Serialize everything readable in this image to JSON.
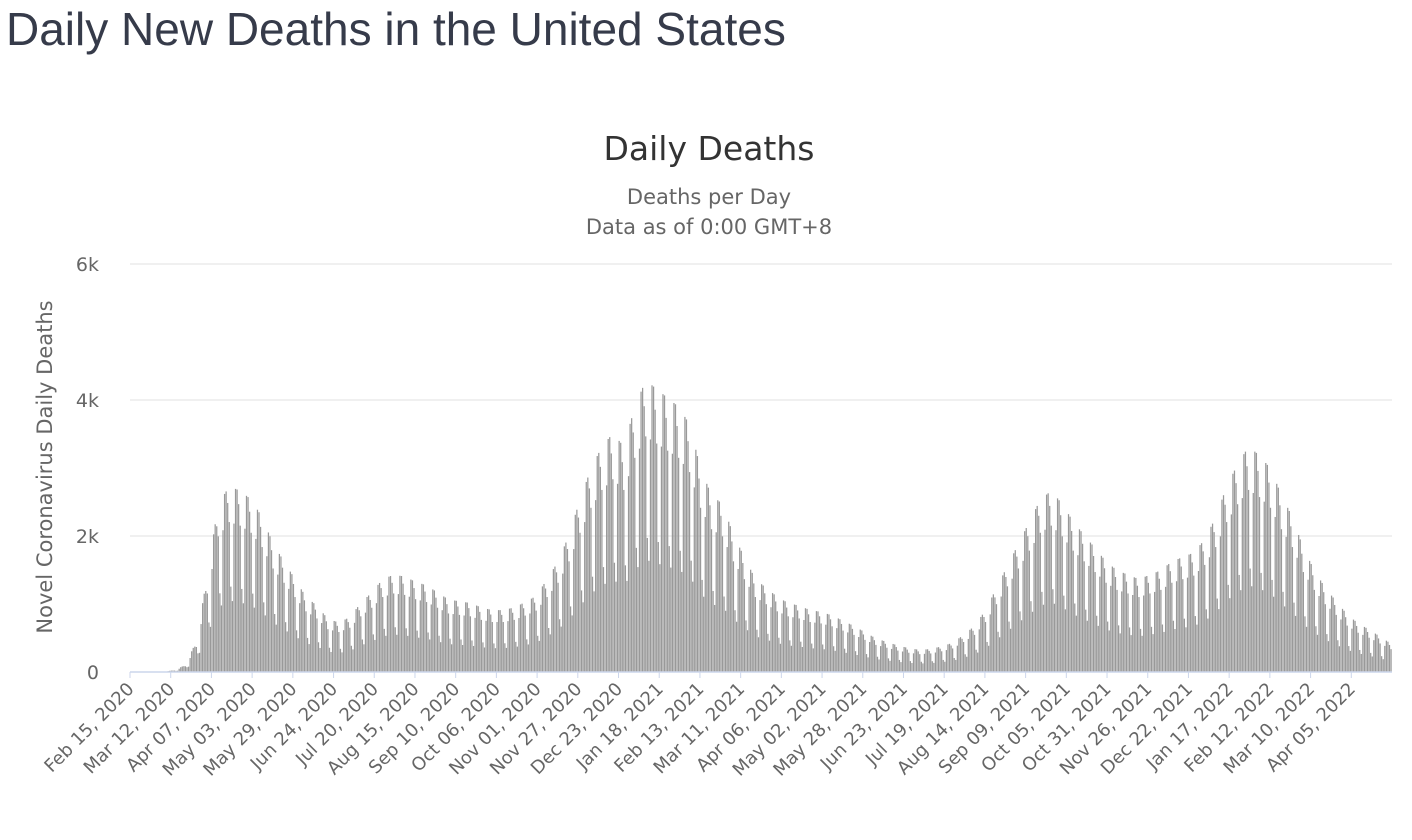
{
  "page": {
    "title": "Daily New Deaths in the United States"
  },
  "chart_data": {
    "type": "bar",
    "title": "Daily Deaths",
    "subtitle": "Deaths per Day",
    "subtitle2": "Data as of 0:00 GMT+8",
    "ylabel": "Novel Coronavirus Daily Deaths",
    "xlabel": "",
    "ylim": [
      0,
      6000
    ],
    "yticks": [
      0,
      2000,
      4000,
      6000
    ],
    "ytick_labels": [
      "0",
      "2k",
      "4k",
      "6k"
    ],
    "x_start": "Feb 15, 2020",
    "x_end": "Apr 30, 2022",
    "x_tick_labels": [
      "Feb 15, 2020",
      "Mar 12, 2020",
      "Apr 07, 2020",
      "May 03, 2020",
      "May 29, 2020",
      "Jun 24, 2020",
      "Jul 20, 2020",
      "Aug 15, 2020",
      "Sep 10, 2020",
      "Oct 06, 2020",
      "Nov 01, 2020",
      "Nov 27, 2020",
      "Dec 23, 2020",
      "Jan 18, 2021",
      "Feb 13, 2021",
      "Mar 11, 2021",
      "Apr 06, 2021",
      "May 02, 2021",
      "May 28, 2021",
      "Jun 23, 2021",
      "Jul 19, 2021",
      "Aug 14, 2021",
      "Sep 09, 2021",
      "Oct 05, 2021",
      "Oct 31, 2021",
      "Nov 26, 2021",
      "Dec 22, 2021",
      "Jan 17, 2022",
      "Feb 12, 2022",
      "Mar 10, 2022",
      "Apr 05, 2022"
    ],
    "series": [
      {
        "name": "",
        "color": "#999999",
        "weekly_average": [
          {
            "week_of": "Feb 15, 2020",
            "value": 0
          },
          {
            "week_of": "Feb 22, 2020",
            "value": 0
          },
          {
            "week_of": "Feb 29, 2020",
            "value": 2
          },
          {
            "week_of": "Mar 07, 2020",
            "value": 5
          },
          {
            "week_of": "Mar 14, 2020",
            "value": 20
          },
          {
            "week_of": "Mar 21, 2020",
            "value": 80
          },
          {
            "week_of": "Mar 28, 2020",
            "value": 350
          },
          {
            "week_of": "Apr 04, 2020",
            "value": 1100
          },
          {
            "week_of": "Apr 11, 2020",
            "value": 1900
          },
          {
            "week_of": "Apr 18, 2020",
            "value": 2100
          },
          {
            "week_of": "Apr 25, 2020",
            "value": 2050
          },
          {
            "week_of": "May 02, 2020",
            "value": 1950
          },
          {
            "week_of": "May 09, 2020",
            "value": 1750
          },
          {
            "week_of": "May 16, 2020",
            "value": 1450
          },
          {
            "week_of": "May 23, 2020",
            "value": 1250
          },
          {
            "week_of": "May 30, 2020",
            "value": 1050
          },
          {
            "week_of": "Jun 06, 2020",
            "value": 850
          },
          {
            "week_of": "Jun 13, 2020",
            "value": 750
          },
          {
            "week_of": "Jun 20, 2020",
            "value": 600
          },
          {
            "week_of": "Jun 27, 2020",
            "value": 560
          },
          {
            "week_of": "Jul 04, 2020",
            "value": 620
          },
          {
            "week_of": "Jul 11, 2020",
            "value": 780
          },
          {
            "week_of": "Jul 18, 2020",
            "value": 900
          },
          {
            "week_of": "Jul 25, 2020",
            "value": 1050
          },
          {
            "week_of": "Aug 01, 2020",
            "value": 1100
          },
          {
            "week_of": "Aug 08, 2020",
            "value": 1080
          },
          {
            "week_of": "Aug 15, 2020",
            "value": 1020
          },
          {
            "week_of": "Aug 22, 2020",
            "value": 980
          },
          {
            "week_of": "Aug 29, 2020",
            "value": 900
          },
          {
            "week_of": "Sep 05, 2020",
            "value": 820
          },
          {
            "week_of": "Sep 12, 2020",
            "value": 800
          },
          {
            "week_of": "Sep 19, 2020",
            "value": 780
          },
          {
            "week_of": "Sep 26, 2020",
            "value": 730
          },
          {
            "week_of": "Oct 03, 2020",
            "value": 700
          },
          {
            "week_of": "Oct 10, 2020",
            "value": 700
          },
          {
            "week_of": "Oct 17, 2020",
            "value": 730
          },
          {
            "week_of": "Oct 24, 2020",
            "value": 790
          },
          {
            "week_of": "Oct 31, 2020",
            "value": 860
          },
          {
            "week_of": "Nov 07, 2020",
            "value": 1050
          },
          {
            "week_of": "Nov 14, 2020",
            "value": 1250
          },
          {
            "week_of": "Nov 21, 2020",
            "value": 1550
          },
          {
            "week_of": "Nov 28, 2020",
            "value": 1950
          },
          {
            "week_of": "Dec 05, 2020",
            "value": 2300
          },
          {
            "week_of": "Dec 12, 2020",
            "value": 2550
          },
          {
            "week_of": "Dec 19, 2020",
            "value": 2700
          },
          {
            "week_of": "Dec 26, 2020",
            "value": 2550
          },
          {
            "week_of": "Jan 02, 2021",
            "value": 3000
          },
          {
            "week_of": "Jan 09, 2021",
            "value": 3300
          },
          {
            "week_of": "Jan 16, 2021",
            "value": 3200
          },
          {
            "week_of": "Jan 23, 2021",
            "value": 3100
          },
          {
            "week_of": "Jan 30, 2021",
            "value": 3000
          },
          {
            "week_of": "Feb 06, 2021",
            "value": 2800
          },
          {
            "week_of": "Feb 13, 2021",
            "value": 2300
          },
          {
            "week_of": "Feb 20, 2021",
            "value": 2000
          },
          {
            "week_of": "Feb 27, 2021",
            "value": 1900
          },
          {
            "week_of": "Mar 06, 2021",
            "value": 1550
          },
          {
            "week_of": "Mar 13, 2021",
            "value": 1300
          },
          {
            "week_of": "Mar 20, 2021",
            "value": 1050
          },
          {
            "week_of": "Mar 27, 2021",
            "value": 950
          },
          {
            "week_of": "Apr 03, 2021",
            "value": 850
          },
          {
            "week_of": "Apr 10, 2021",
            "value": 780
          },
          {
            "week_of": "Apr 17, 2021",
            "value": 750
          },
          {
            "week_of": "Apr 24, 2021",
            "value": 700
          },
          {
            "week_of": "May 01, 2021",
            "value": 680
          },
          {
            "week_of": "May 08, 2021",
            "value": 640
          },
          {
            "week_of": "May 15, 2021",
            "value": 580
          },
          {
            "week_of": "May 22, 2021",
            "value": 520
          },
          {
            "week_of": "May 29, 2021",
            "value": 450
          },
          {
            "week_of": "Jun 05, 2021",
            "value": 380
          },
          {
            "week_of": "Jun 12, 2021",
            "value": 340
          },
          {
            "week_of": "Jun 19, 2021",
            "value": 300
          },
          {
            "week_of": "Jun 26, 2021",
            "value": 270
          },
          {
            "week_of": "Jul 03, 2021",
            "value": 250
          },
          {
            "week_of": "Jul 10, 2021",
            "value": 260
          },
          {
            "week_of": "Jul 17, 2021",
            "value": 290
          },
          {
            "week_of": "Jul 24, 2021",
            "value": 330
          },
          {
            "week_of": "Jul 31, 2021",
            "value": 420
          },
          {
            "week_of": "Aug 07, 2021",
            "value": 520
          },
          {
            "week_of": "Aug 14, 2021",
            "value": 700
          },
          {
            "week_of": "Aug 21, 2021",
            "value": 950
          },
          {
            "week_of": "Aug 28, 2021",
            "value": 1200
          },
          {
            "week_of": "Sep 04, 2021",
            "value": 1450
          },
          {
            "week_of": "Sep 11, 2021",
            "value": 1700
          },
          {
            "week_of": "Sep 18, 2021",
            "value": 1950
          },
          {
            "week_of": "Sep 25, 2021",
            "value": 2050
          },
          {
            "week_of": "Oct 02, 2021",
            "value": 1900
          },
          {
            "week_of": "Oct 09, 2021",
            "value": 1700
          },
          {
            "week_of": "Oct 16, 2021",
            "value": 1550
          },
          {
            "week_of": "Oct 23, 2021",
            "value": 1400
          },
          {
            "week_of": "Oct 30, 2021",
            "value": 1250
          },
          {
            "week_of": "Nov 06, 2021",
            "value": 1150
          },
          {
            "week_of": "Nov 13, 2021",
            "value": 1100
          },
          {
            "week_of": "Nov 20, 2021",
            "value": 1050
          },
          {
            "week_of": "Nov 27, 2021",
            "value": 1100
          },
          {
            "week_of": "Dec 04, 2021",
            "value": 1150
          },
          {
            "week_of": "Dec 11, 2021",
            "value": 1250
          },
          {
            "week_of": "Dec 18, 2021",
            "value": 1300
          },
          {
            "week_of": "Dec 25, 2021",
            "value": 1350
          },
          {
            "week_of": "Jan 01, 2022",
            "value": 1500
          },
          {
            "week_of": "Jan 08, 2022",
            "value": 1750
          },
          {
            "week_of": "Jan 15, 2022",
            "value": 2100
          },
          {
            "week_of": "Jan 22, 2022",
            "value": 2350
          },
          {
            "week_of": "Jan 29, 2022",
            "value": 2550
          },
          {
            "week_of": "Feb 05, 2022",
            "value": 2450
          },
          {
            "week_of": "Feb 12, 2022",
            "value": 2300
          },
          {
            "week_of": "Feb 19, 2022",
            "value": 2000
          },
          {
            "week_of": "Feb 26, 2022",
            "value": 1750
          },
          {
            "week_of": "Mar 05, 2022",
            "value": 1400
          },
          {
            "week_of": "Mar 12, 2022",
            "value": 1150
          },
          {
            "week_of": "Mar 19, 2022",
            "value": 950
          },
          {
            "week_of": "Mar 26, 2022",
            "value": 800
          },
          {
            "week_of": "Apr 02, 2022",
            "value": 650
          },
          {
            "week_of": "Apr 09, 2022",
            "value": 550
          },
          {
            "week_of": "Apr 16, 2022",
            "value": 480
          },
          {
            "week_of": "Apr 23, 2022",
            "value": 400
          },
          {
            "week_of": "Apr 30, 2022",
            "value": 320
          }
        ]
      }
    ],
    "grid": true,
    "legend": "none"
  }
}
